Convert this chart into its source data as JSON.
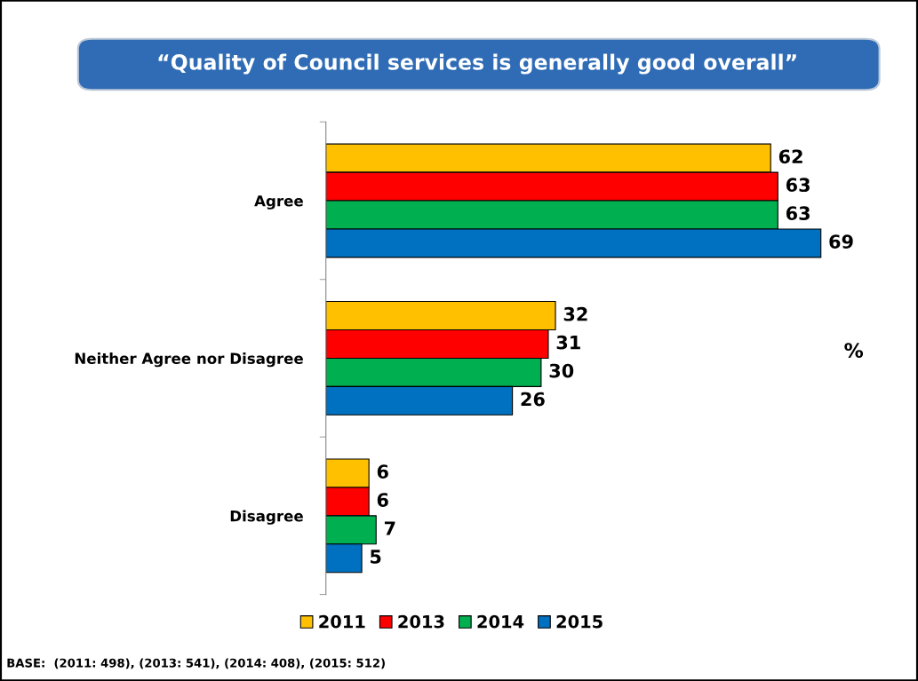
{
  "chart_data": {
    "type": "bar",
    "orientation": "horizontal",
    "title": "“Quality of Council services is generally good overall”",
    "categories": [
      "Agree",
      "Neither Agree nor Disagree",
      "Disagree"
    ],
    "series": [
      {
        "name": "2011",
        "color": "#ffc000",
        "values": [
          62,
          32,
          6
        ]
      },
      {
        "name": "2013",
        "color": "#ff0000",
        "values": [
          63,
          31,
          6
        ]
      },
      {
        "name": "2014",
        "color": "#00b050",
        "values": [
          63,
          30,
          7
        ]
      },
      {
        "name": "2015",
        "color": "#0070c0",
        "values": [
          69,
          26,
          5
        ]
      }
    ],
    "data_labels": true,
    "legend": "bottom",
    "grid": false,
    "annotations": [
      "%",
      "BASE:  (2011: 498), (2013: 541), (2014: 408), (2015: 512)"
    ]
  }
}
